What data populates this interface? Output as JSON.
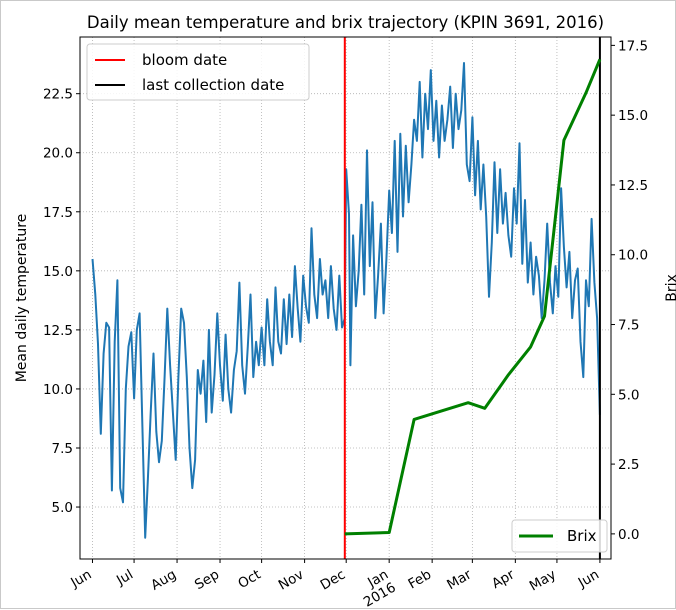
{
  "chart_data": {
    "type": "line",
    "title": "Daily mean temperature and brix trajectory (KPIN 3691, 2016)",
    "ylabel_left": "Mean daily temperature",
    "ylabel_right": "Brix",
    "x_range": [
      "2015-05-23",
      "2016-06-09"
    ],
    "ylim_left": [
      2.8,
      24.9
    ],
    "ylim_right": [
      -0.9,
      17.8
    ],
    "yticks_left": [
      5.0,
      7.5,
      10.0,
      12.5,
      15.0,
      17.5,
      20.0,
      22.5
    ],
    "yticks_left_labels": [
      "5.0",
      "7.5",
      "10.0",
      "12.5",
      "15.0",
      "17.5",
      "20.0",
      "22.5"
    ],
    "yticks_right": [
      0.0,
      2.5,
      5.0,
      7.5,
      10.0,
      12.5,
      15.0,
      17.5
    ],
    "yticks_right_labels": [
      "0.0",
      "2.5",
      "5.0",
      "7.5",
      "10.0",
      "12.5",
      "15.0",
      "17.5"
    ],
    "xticks": [
      {
        "date": "2015-06-01",
        "label": "Jun"
      },
      {
        "date": "2015-07-01",
        "label": "Jul"
      },
      {
        "date": "2015-08-01",
        "label": "Aug"
      },
      {
        "date": "2015-09-01",
        "label": "Sep"
      },
      {
        "date": "2015-10-01",
        "label": "Oct"
      },
      {
        "date": "2015-11-01",
        "label": "Nov"
      },
      {
        "date": "2015-12-01",
        "label": "Dec"
      },
      {
        "date": "2016-01-01",
        "label": "Jan\n2016"
      },
      {
        "date": "2016-02-01",
        "label": "Feb"
      },
      {
        "date": "2016-03-01",
        "label": "Mar"
      },
      {
        "date": "2016-04-01",
        "label": "Apr"
      },
      {
        "date": "2016-05-01",
        "label": "May"
      },
      {
        "date": "2016-06-01",
        "label": "Jun"
      }
    ],
    "grid": true,
    "vlines": [
      {
        "name": "bloom date",
        "date": "2015-11-30",
        "color": "#ff0000"
      },
      {
        "name": "last collection date",
        "date": "2016-06-01",
        "color": "#000000"
      }
    ],
    "series": [
      {
        "name": "Mean daily temperature",
        "axis": "left",
        "color": "#1f77b4",
        "points": [
          [
            "2015-06-01",
            15.5
          ],
          [
            "2015-06-03",
            14.0
          ],
          [
            "2015-06-05",
            11.9
          ],
          [
            "2015-06-07",
            8.1
          ],
          [
            "2015-06-09",
            11.5
          ],
          [
            "2015-06-11",
            12.8
          ],
          [
            "2015-06-13",
            12.6
          ],
          [
            "2015-06-15",
            5.7
          ],
          [
            "2015-06-17",
            12.0
          ],
          [
            "2015-06-19",
            14.6
          ],
          [
            "2015-06-21",
            5.8
          ],
          [
            "2015-06-23",
            5.2
          ],
          [
            "2015-06-25",
            10.0
          ],
          [
            "2015-06-27",
            11.8
          ],
          [
            "2015-06-29",
            12.4
          ],
          [
            "2015-07-01",
            9.6
          ],
          [
            "2015-07-03",
            12.5
          ],
          [
            "2015-07-05",
            13.2
          ],
          [
            "2015-07-07",
            8.4
          ],
          [
            "2015-07-09",
            3.7
          ],
          [
            "2015-07-11",
            6.2
          ],
          [
            "2015-07-13",
            9.0
          ],
          [
            "2015-07-15",
            11.5
          ],
          [
            "2015-07-17",
            8.2
          ],
          [
            "2015-07-19",
            6.9
          ],
          [
            "2015-07-21",
            7.8
          ],
          [
            "2015-07-23",
            10.5
          ],
          [
            "2015-07-25",
            13.4
          ],
          [
            "2015-07-27",
            11.0
          ],
          [
            "2015-07-29",
            9.0
          ],
          [
            "2015-07-31",
            7.0
          ],
          [
            "2015-08-02",
            10.5
          ],
          [
            "2015-08-04",
            13.4
          ],
          [
            "2015-08-06",
            12.8
          ],
          [
            "2015-08-08",
            10.5
          ],
          [
            "2015-08-10",
            7.5
          ],
          [
            "2015-08-12",
            5.8
          ],
          [
            "2015-08-14",
            7.0
          ],
          [
            "2015-08-16",
            10.8
          ],
          [
            "2015-08-18",
            9.8
          ],
          [
            "2015-08-20",
            11.2
          ],
          [
            "2015-08-22",
            8.6
          ],
          [
            "2015-08-24",
            12.5
          ],
          [
            "2015-08-26",
            9.0
          ],
          [
            "2015-08-28",
            10.6
          ],
          [
            "2015-08-30",
            13.2
          ],
          [
            "2015-09-01",
            11.0
          ],
          [
            "2015-09-03",
            9.5
          ],
          [
            "2015-09-05",
            12.3
          ],
          [
            "2015-09-07",
            10.0
          ],
          [
            "2015-09-09",
            9.0
          ],
          [
            "2015-09-11",
            10.8
          ],
          [
            "2015-09-13",
            11.6
          ],
          [
            "2015-09-15",
            14.5
          ],
          [
            "2015-09-17",
            11.0
          ],
          [
            "2015-09-19",
            9.8
          ],
          [
            "2015-09-21",
            11.8
          ],
          [
            "2015-09-23",
            14.0
          ],
          [
            "2015-09-25",
            10.5
          ],
          [
            "2015-09-27",
            12.0
          ],
          [
            "2015-09-29",
            11.0
          ],
          [
            "2015-10-01",
            12.6
          ],
          [
            "2015-10-03",
            11.0
          ],
          [
            "2015-10-05",
            13.8
          ],
          [
            "2015-10-07",
            12.0
          ],
          [
            "2015-10-09",
            11.0
          ],
          [
            "2015-10-11",
            14.3
          ],
          [
            "2015-10-13",
            12.0
          ],
          [
            "2015-10-15",
            11.5
          ],
          [
            "2015-10-17",
            13.8
          ],
          [
            "2015-10-19",
            11.9
          ],
          [
            "2015-10-21",
            14.0
          ],
          [
            "2015-10-23",
            12.2
          ],
          [
            "2015-10-25",
            15.2
          ],
          [
            "2015-10-27",
            13.4
          ],
          [
            "2015-10-29",
            12.0
          ],
          [
            "2015-10-31",
            14.8
          ],
          [
            "2015-11-02",
            13.5
          ],
          [
            "2015-11-04",
            12.8
          ],
          [
            "2015-11-06",
            16.8
          ],
          [
            "2015-11-08",
            14.0
          ],
          [
            "2015-11-10",
            13.0
          ],
          [
            "2015-11-12",
            15.5
          ],
          [
            "2015-11-14",
            14.0
          ],
          [
            "2015-11-16",
            14.6
          ],
          [
            "2015-11-18",
            13.0
          ],
          [
            "2015-11-20",
            15.2
          ],
          [
            "2015-11-22",
            13.4
          ],
          [
            "2015-11-24",
            12.5
          ],
          [
            "2015-11-26",
            14.8
          ],
          [
            "2015-11-28",
            12.6
          ],
          [
            "2015-11-30",
            13.0
          ],
          [
            "2015-12-01",
            19.3
          ],
          [
            "2015-12-03",
            17.4
          ],
          [
            "2015-12-04",
            11.0
          ],
          [
            "2015-12-06",
            16.5
          ],
          [
            "2015-12-08",
            13.5
          ],
          [
            "2015-12-10",
            15.0
          ],
          [
            "2015-12-12",
            17.8
          ],
          [
            "2015-12-14",
            14.0
          ],
          [
            "2015-12-16",
            20.1
          ],
          [
            "2015-12-18",
            15.2
          ],
          [
            "2015-12-20",
            17.9
          ],
          [
            "2015-12-22",
            13.0
          ],
          [
            "2015-12-24",
            14.8
          ],
          [
            "2015-12-26",
            17.0
          ],
          [
            "2015-12-28",
            13.2
          ],
          [
            "2015-12-30",
            15.5
          ],
          [
            "2016-01-01",
            18.4
          ],
          [
            "2016-01-03",
            16.6
          ],
          [
            "2016-01-05",
            20.5
          ],
          [
            "2016-01-07",
            15.8
          ],
          [
            "2016-01-09",
            20.8
          ],
          [
            "2016-01-11",
            17.3
          ],
          [
            "2016-01-13",
            20.3
          ],
          [
            "2016-01-15",
            17.9
          ],
          [
            "2016-01-17",
            19.5
          ],
          [
            "2016-01-19",
            21.4
          ],
          [
            "2016-01-21",
            20.5
          ],
          [
            "2016-01-23",
            23.0
          ],
          [
            "2016-01-25",
            19.8
          ],
          [
            "2016-01-27",
            22.5
          ],
          [
            "2016-01-29",
            21.0
          ],
          [
            "2016-01-31",
            23.5
          ],
          [
            "2016-02-02",
            20.5
          ],
          [
            "2016-02-04",
            22.2
          ],
          [
            "2016-02-06",
            19.8
          ],
          [
            "2016-02-08",
            22.0
          ],
          [
            "2016-02-10",
            20.5
          ],
          [
            "2016-02-12",
            21.4
          ],
          [
            "2016-02-14",
            22.8
          ],
          [
            "2016-02-16",
            20.2
          ],
          [
            "2016-02-18",
            22.5
          ],
          [
            "2016-02-20",
            21.0
          ],
          [
            "2016-02-22",
            21.8
          ],
          [
            "2016-02-24",
            23.8
          ],
          [
            "2016-02-26",
            19.5
          ],
          [
            "2016-02-28",
            18.8
          ],
          [
            "2016-03-01",
            21.5
          ],
          [
            "2016-03-03",
            18.2
          ],
          [
            "2016-03-05",
            20.5
          ],
          [
            "2016-03-07",
            17.6
          ],
          [
            "2016-03-09",
            19.5
          ],
          [
            "2016-03-11",
            17.3
          ],
          [
            "2016-03-13",
            13.9
          ],
          [
            "2016-03-15",
            16.2
          ],
          [
            "2016-03-17",
            19.6
          ],
          [
            "2016-03-19",
            16.6
          ],
          [
            "2016-03-21",
            19.3
          ],
          [
            "2016-03-23",
            17.0
          ],
          [
            "2016-03-25",
            18.3
          ],
          [
            "2016-03-27",
            16.5
          ],
          [
            "2016-03-29",
            15.6
          ],
          [
            "2016-03-31",
            18.5
          ],
          [
            "2016-04-02",
            17.0
          ],
          [
            "2016-04-04",
            20.4
          ],
          [
            "2016-04-06",
            15.3
          ],
          [
            "2016-04-08",
            18.0
          ],
          [
            "2016-04-10",
            14.5
          ],
          [
            "2016-04-12",
            16.2
          ],
          [
            "2016-04-14",
            14.0
          ],
          [
            "2016-04-16",
            15.6
          ],
          [
            "2016-04-18",
            14.8
          ],
          [
            "2016-04-20",
            13.0
          ],
          [
            "2016-04-22",
            14.6
          ],
          [
            "2016-04-24",
            17.0
          ],
          [
            "2016-04-26",
            14.5
          ],
          [
            "2016-04-28",
            13.2
          ],
          [
            "2016-04-30",
            15.2
          ],
          [
            "2016-05-02",
            13.9
          ],
          [
            "2016-05-04",
            18.5
          ],
          [
            "2016-05-06",
            16.0
          ],
          [
            "2016-05-08",
            14.3
          ],
          [
            "2016-05-10",
            15.8
          ],
          [
            "2016-05-12",
            13.0
          ],
          [
            "2016-05-14",
            14.6
          ],
          [
            "2016-05-16",
            15.1
          ],
          [
            "2016-05-18",
            12.0
          ],
          [
            "2016-05-20",
            10.5
          ],
          [
            "2016-05-22",
            14.6
          ],
          [
            "2016-05-24",
            13.5
          ],
          [
            "2016-05-26",
            17.2
          ],
          [
            "2016-05-28",
            14.5
          ],
          [
            "2016-05-30",
            13.0
          ],
          [
            "2016-06-01",
            8.9
          ]
        ]
      },
      {
        "name": "Brix",
        "axis": "right",
        "color": "#008000",
        "points": [
          [
            "2015-11-30",
            0.0
          ],
          [
            "2016-01-01",
            0.05
          ],
          [
            "2016-01-19",
            4.1
          ],
          [
            "2016-02-27",
            4.7
          ],
          [
            "2016-03-10",
            4.5
          ],
          [
            "2016-03-27",
            5.7
          ],
          [
            "2016-04-12",
            6.7
          ],
          [
            "2016-04-22",
            7.8
          ],
          [
            "2016-05-06",
            14.1
          ],
          [
            "2016-05-22",
            15.8
          ],
          [
            "2016-06-01",
            17.0
          ]
        ]
      }
    ],
    "legends": [
      {
        "location": "upper-left",
        "entries": [
          "bloom date",
          "last collection date"
        ]
      },
      {
        "location": "lower-right",
        "entries": [
          "Brix"
        ]
      }
    ]
  }
}
